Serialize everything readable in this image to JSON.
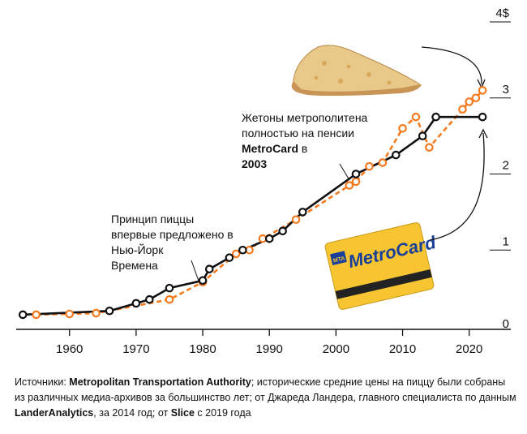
{
  "chart_data": {
    "type": "line",
    "x_ticks": [
      "1960",
      "1970",
      "1980",
      "1990",
      "2000",
      "2010",
      "2020"
    ],
    "y_ticks": [
      "0",
      "1",
      "2",
      "3",
      "4$"
    ],
    "xlim": [
      1952,
      2026
    ],
    "ylim": [
      0,
      4
    ],
    "series": [
      {
        "key": "subway",
        "color": "#111111",
        "style": "solid",
        "points": [
          [
            1953,
            0.15
          ],
          [
            1966,
            0.2
          ],
          [
            1970,
            0.3
          ],
          [
            1972,
            0.35
          ],
          [
            1975,
            0.5
          ],
          [
            1980,
            0.6
          ],
          [
            1981,
            0.75
          ],
          [
            1984,
            0.9
          ],
          [
            1986,
            1.0
          ],
          [
            1990,
            1.15
          ],
          [
            1992,
            1.25
          ],
          [
            1995,
            1.5
          ],
          [
            2003,
            2.0
          ],
          [
            2009,
            2.25
          ],
          [
            2013,
            2.5
          ],
          [
            2015,
            2.75
          ],
          [
            2022,
            2.75
          ]
        ]
      },
      {
        "key": "pizza",
        "color": "#f47a1f",
        "style": "dashed",
        "points": [
          [
            1955,
            0.15
          ],
          [
            1960,
            0.16
          ],
          [
            1964,
            0.17
          ],
          [
            1975,
            0.35
          ],
          [
            1980,
            0.58
          ],
          [
            1985,
            0.95
          ],
          [
            1987,
            1.0
          ],
          [
            1989,
            1.15
          ],
          [
            1994,
            1.4
          ],
          [
            2002,
            1.85
          ],
          [
            2003,
            1.9
          ],
          [
            2005,
            2.1
          ],
          [
            2007,
            2.15
          ],
          [
            2010,
            2.6
          ],
          [
            2012,
            2.75
          ],
          [
            2014,
            2.35
          ],
          [
            2019,
            2.85
          ],
          [
            2020,
            2.95
          ],
          [
            2021,
            3.0
          ],
          [
            2022,
            3.1
          ]
        ]
      }
    ]
  },
  "annotations": {
    "pizza_principle": [
      "Принцип пиццы",
      "впервые предложено в",
      "Нью-Йорк",
      "Времена"
    ],
    "tokens_retired": {
      "line1": "Жетоны метрополитена",
      "line2": "полностью на пенсии",
      "line3": "MetroCard",
      "line3_rest": " в",
      "line4": "2003"
    }
  },
  "card": {
    "brand": "MetroCard",
    "badge": "MTA"
  },
  "sources": {
    "p1": "Источники: ",
    "b1": "Metropolitan Transportation Authority",
    "p2": "; исторические средние цены на пиццу были собраны из различных медиа-архивов за большинство лет; от Джареда Ландера, главного специалиста по данным ",
    "b2": "LanderAnalytics",
    "p3": ", за 2014 год; от ",
    "b3": "Slice",
    "p4": " с 2019 года"
  },
  "colors": {
    "subway": "#111111",
    "pizza": "#f47a1f",
    "card": "#f6c531"
  },
  "icons": {
    "pizza": "pizza-slice-image",
    "card": "metrocard-image"
  }
}
